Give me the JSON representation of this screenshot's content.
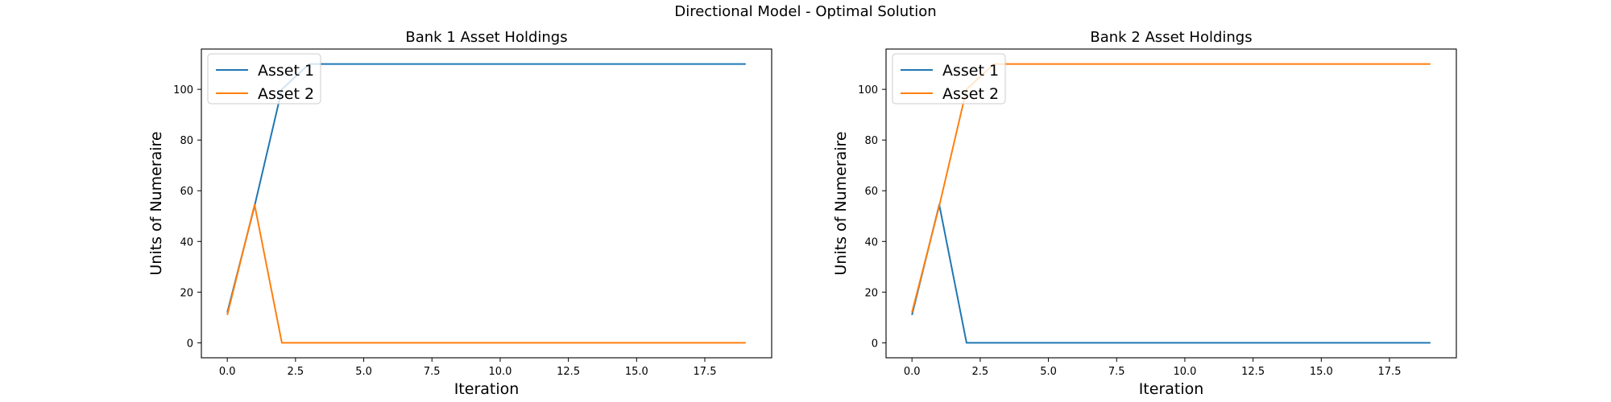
{
  "figure": {
    "title": "Directional Model - Optimal Solution"
  },
  "chart_data": [
    {
      "type": "line",
      "title": "Bank 1 Asset Holdings",
      "xlabel": "Iteration",
      "ylabel": "Units of Numeraire",
      "xlim": [
        -0.95,
        19.95
      ],
      "ylim": [
        -5.9,
        115.9
      ],
      "xticks": [
        0.0,
        2.5,
        5.0,
        7.5,
        10.0,
        12.5,
        15.0,
        17.5
      ],
      "xtick_labels": [
        "0.0",
        "2.5",
        "5.0",
        "7.5",
        "10.0",
        "12.5",
        "15.0",
        "17.5"
      ],
      "yticks": [
        0,
        20,
        40,
        60,
        80,
        100
      ],
      "ytick_labels": [
        "0",
        "20",
        "40",
        "60",
        "80",
        "100"
      ],
      "grid": false,
      "legend_position": "top-left",
      "x": [
        0,
        1,
        2,
        3,
        4,
        5,
        6,
        7,
        8,
        9,
        10,
        11,
        12,
        13,
        14,
        15,
        16,
        17,
        18,
        19
      ],
      "series": [
        {
          "name": "Asset 1",
          "color": "#1f77b4",
          "values": [
            12,
            54,
            100,
            110,
            110,
            110,
            110,
            110,
            110,
            110,
            110,
            110,
            110,
            110,
            110,
            110,
            110,
            110,
            110,
            110
          ]
        },
        {
          "name": "Asset 2",
          "color": "#ff7f0e",
          "values": [
            11,
            54.5,
            0,
            0,
            0,
            0,
            0,
            0,
            0,
            0,
            0,
            0,
            0,
            0,
            0,
            0,
            0,
            0,
            0,
            0
          ]
        }
      ]
    },
    {
      "type": "line",
      "title": "Bank 2 Asset Holdings",
      "xlabel": "Iteration",
      "ylabel": "Units of Numeraire",
      "xlim": [
        -0.95,
        19.95
      ],
      "ylim": [
        -5.9,
        115.9
      ],
      "xticks": [
        0.0,
        2.5,
        5.0,
        7.5,
        10.0,
        12.5,
        15.0,
        17.5
      ],
      "xtick_labels": [
        "0.0",
        "2.5",
        "5.0",
        "7.5",
        "10.0",
        "12.5",
        "15.0",
        "17.5"
      ],
      "yticks": [
        0,
        20,
        40,
        60,
        80,
        100
      ],
      "ytick_labels": [
        "0",
        "20",
        "40",
        "60",
        "80",
        "100"
      ],
      "grid": false,
      "legend_position": "top-left",
      "x": [
        0,
        1,
        2,
        3,
        4,
        5,
        6,
        7,
        8,
        9,
        10,
        11,
        12,
        13,
        14,
        15,
        16,
        17,
        18,
        19
      ],
      "series": [
        {
          "name": "Asset 1",
          "color": "#1f77b4",
          "values": [
            11,
            54.5,
            0,
            0,
            0,
            0,
            0,
            0,
            0,
            0,
            0,
            0,
            0,
            0,
            0,
            0,
            0,
            0,
            0,
            0
          ]
        },
        {
          "name": "Asset 2",
          "color": "#ff7f0e",
          "values": [
            12,
            54,
            100,
            110,
            110,
            110,
            110,
            110,
            110,
            110,
            110,
            110,
            110,
            110,
            110,
            110,
            110,
            110,
            110,
            110
          ]
        }
      ]
    }
  ]
}
